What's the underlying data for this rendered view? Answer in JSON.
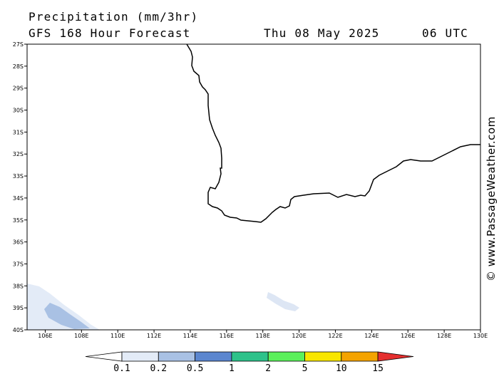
{
  "header": {
    "title": "Precipitation (mm/3hr)",
    "subtitle": "GFS 168 Hour Forecast",
    "date": "Thu 08 May 2025",
    "time": "06 UTC"
  },
  "map": {
    "lat_labels": [
      "27S",
      "28S",
      "29S",
      "30S",
      "31S",
      "32S",
      "33S",
      "34S",
      "35S",
      "36S",
      "37S",
      "38S",
      "39S",
      "40S"
    ],
    "lon_labels": [
      "106E",
      "108E",
      "110E",
      "112E",
      "114E",
      "116E",
      "118E",
      "120E",
      "122E",
      "124E",
      "126E",
      "128E",
      "130E"
    ],
    "lat_range": [
      -40,
      -27
    ],
    "lon_range": [
      105,
      130
    ],
    "region": "Southwest Western Australia coastline",
    "precip_areas": [
      {
        "level": "0.1-0.2",
        "color": "#e3ebf7",
        "location": "southwest corner near 105E-110E, 38S-40S"
      },
      {
        "level": "0.2-0.5",
        "color": "#b6cbe8",
        "location": "near 106E-108E, 39S-40S"
      },
      {
        "level": "0.1-0.2",
        "color": "#e3ebf7",
        "location": "near 118E-120E, 38S-39S"
      }
    ]
  },
  "colorbar": {
    "labels": [
      "0.1",
      "0.2",
      "0.5",
      "1",
      "2",
      "5",
      "10",
      "15"
    ],
    "colors": [
      "#ffffff",
      "#e3ebf7",
      "#a9c1e4",
      "#5b86cf",
      "#2dc28a",
      "#5bf05b",
      "#f8e600",
      "#f4a300",
      "#e52f2f"
    ]
  },
  "credit": "© www.PassageWeather.com"
}
